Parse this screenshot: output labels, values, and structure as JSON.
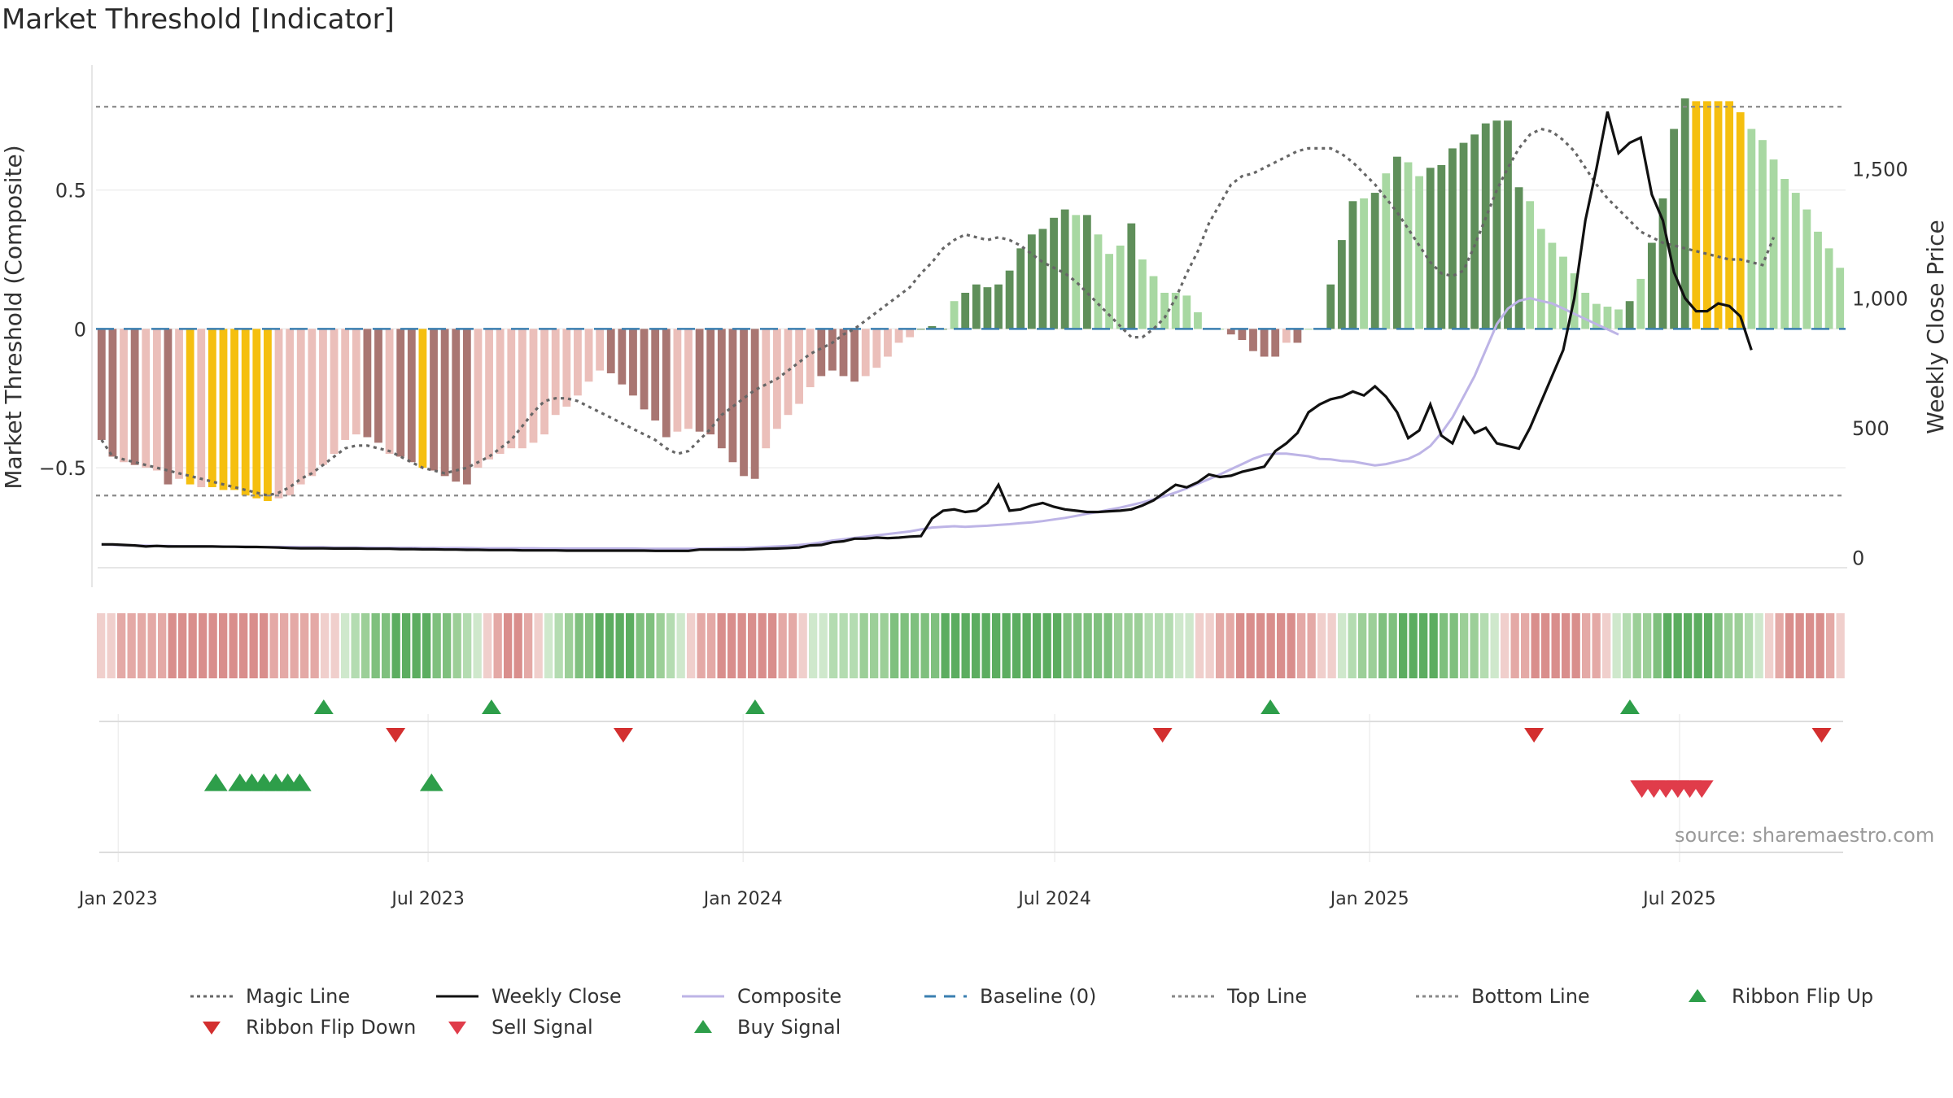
{
  "chart_data": {
    "type": "bar",
    "title": "Market Threshold [Indicator]",
    "ylabel": "Market Threshold (Composite)",
    "ylabel_right": "Weekly Close Price",
    "ylim": [
      -0.86,
      0.95
    ],
    "ylim_right": [
      -40,
      1900
    ],
    "yticks": [
      {
        "v": 0.5,
        "label": "0.5"
      },
      {
        "v": 0,
        "label": "0"
      },
      {
        "v": -0.5,
        "label": "−0.5"
      }
    ],
    "yticks_right": [
      {
        "v": 1500,
        "label": "1,500"
      },
      {
        "v": 1000,
        "label": "1,000"
      },
      {
        "v": 500,
        "label": "500"
      },
      {
        "v": 0,
        "label": "0"
      }
    ],
    "x_start": "2022-12-19",
    "x_end": "2025-10-06",
    "xticks": [
      {
        "date": "2023-01-01",
        "label": "Jan 2023"
      },
      {
        "date": "2023-07-01",
        "label": "Jul 2023"
      },
      {
        "date": "2024-01-01",
        "label": "Jan 2024"
      },
      {
        "date": "2024-07-01",
        "label": "Jul 2024"
      },
      {
        "date": "2025-01-01",
        "label": "Jan 2025"
      },
      {
        "date": "2025-07-01",
        "label": "Jul 2025"
      }
    ],
    "top_line": 0.8,
    "bottom_line": -0.6,
    "baseline": 0,
    "grid": true,
    "legend_position": "bottom",
    "weeks": 144,
    "composite_bars": [
      -0.4,
      -0.46,
      -0.48,
      -0.49,
      -0.5,
      -0.51,
      -0.56,
      -0.54,
      -0.56,
      -0.57,
      -0.57,
      -0.58,
      -0.58,
      -0.6,
      -0.61,
      -0.62,
      -0.61,
      -0.6,
      -0.56,
      -0.53,
      -0.49,
      -0.45,
      -0.4,
      -0.38,
      -0.39,
      -0.41,
      -0.45,
      -0.46,
      -0.48,
      -0.5,
      -0.51,
      -0.53,
      -0.55,
      -0.56,
      -0.5,
      -0.47,
      -0.45,
      -0.43,
      -0.43,
      -0.41,
      -0.38,
      -0.31,
      -0.28,
      -0.24,
      -0.19,
      -0.15,
      -0.16,
      -0.2,
      -0.24,
      -0.29,
      -0.33,
      -0.39,
      -0.37,
      -0.36,
      -0.37,
      -0.38,
      -0.43,
      -0.48,
      -0.53,
      -0.54,
      -0.43,
      -0.36,
      -0.31,
      -0.27,
      -0.21,
      -0.17,
      -0.15,
      -0.17,
      -0.19,
      -0.17,
      -0.14,
      -0.1,
      -0.05,
      -0.03,
      0.0,
      0.01,
      0.0,
      0.1,
      0.13,
      0.16,
      0.15,
      0.16,
      0.21,
      0.29,
      0.34,
      0.36,
      0.4,
      0.43,
      0.41,
      0.41,
      0.34,
      0.27,
      0.3,
      0.38,
      0.25,
      0.19,
      0.13,
      0.13,
      0.12,
      0.06,
      0.0,
      0.0,
      -0.02,
      -0.04,
      -0.08,
      -0.1,
      -0.1,
      -0.05,
      -0.05,
      0.0,
      0.0,
      0.16,
      0.32,
      0.46,
      0.47,
      0.49,
      0.56,
      0.62,
      0.6,
      0.55,
      0.58,
      0.59,
      0.65,
      0.67,
      0.7,
      0.74,
      0.75,
      0.75,
      0.51,
      0.46,
      0.36,
      0.31,
      0.26,
      0.2,
      0.13,
      0.09,
      0.08,
      0.07,
      0.1,
      0.18,
      0.31,
      0.47,
      0.72,
      0.83,
      0.82,
      0.82,
      0.82,
      0.82,
      0.78,
      0.72,
      0.68,
      0.61,
      0.54,
      0.49,
      0.43,
      0.35,
      0.29,
      0.22
    ],
    "bar_tone": [
      "dk",
      "dk",
      "lt",
      "dk",
      "lt",
      "lt",
      "dk",
      "lt",
      "dk",
      "lt",
      "lt",
      "dk",
      "lt",
      "dk",
      "lt",
      "dk",
      "lt",
      "lt",
      "lt",
      "lt",
      "lt",
      "lt",
      "lt",
      "lt",
      "dk",
      "dk",
      "lt",
      "dk",
      "dk",
      "dk",
      "dk",
      "dk",
      "dk",
      "dk",
      "lt",
      "lt",
      "lt",
      "lt",
      "lt",
      "lt",
      "lt",
      "lt",
      "lt",
      "lt",
      "lt",
      "lt",
      "dk",
      "dk",
      "dk",
      "dk",
      "dk",
      "dk",
      "lt",
      "lt",
      "dk",
      "dk",
      "dk",
      "dk",
      "dk",
      "dk",
      "lt",
      "lt",
      "lt",
      "lt",
      "lt",
      "dk",
      "dk",
      "dk",
      "dk",
      "lt",
      "lt",
      "lt",
      "lt",
      "lt",
      "dk",
      "dk",
      "dk",
      "lt",
      "dk",
      "dk",
      "dk",
      "dk",
      "dk",
      "dk",
      "dk",
      "dk",
      "dk",
      "dk",
      "lt",
      "dk",
      "lt",
      "lt",
      "lt",
      "dk",
      "lt",
      "lt",
      "lt",
      "lt",
      "lt",
      "lt",
      "lt",
      "lt",
      "dk",
      "dk",
      "dk",
      "dk",
      "dk",
      "lt",
      "dk",
      "lt",
      "dk",
      "dk",
      "dk",
      "dk",
      "lt",
      "dk",
      "lt",
      "dk",
      "lt",
      "lt",
      "dk",
      "dk",
      "dk",
      "dk",
      "dk",
      "dk",
      "dk",
      "dk",
      "dk",
      "lt",
      "lt",
      "lt",
      "lt",
      "lt",
      "lt",
      "lt",
      "lt",
      "lt",
      "dk",
      "lt",
      "dk",
      "dk",
      "dk",
      "dk",
      "gd",
      "gd",
      "gd",
      "gd",
      "gd",
      "lt",
      "lt",
      "lt",
      "lt",
      "lt",
      "lt",
      "lt",
      "lt",
      "lt",
      "lt"
    ],
    "gold_bars": [
      8,
      10,
      11,
      12,
      13,
      14,
      15,
      29
    ],
    "gold_bars_late": [
      138,
      139,
      140,
      141,
      142
    ],
    "magic_line": [
      -0.4,
      -0.46,
      -0.47,
      -0.48,
      -0.49,
      -0.5,
      -0.51,
      -0.52,
      -0.53,
      -0.54,
      -0.55,
      -0.56,
      -0.57,
      -0.58,
      -0.59,
      -0.6,
      -0.59,
      -0.57,
      -0.54,
      -0.52,
      -0.49,
      -0.46,
      -0.43,
      -0.42,
      -0.42,
      -0.43,
      -0.44,
      -0.46,
      -0.48,
      -0.5,
      -0.51,
      -0.52,
      -0.51,
      -0.5,
      -0.48,
      -0.46,
      -0.43,
      -0.4,
      -0.35,
      -0.3,
      -0.26,
      -0.25,
      -0.25,
      -0.26,
      -0.28,
      -0.3,
      -0.32,
      -0.34,
      -0.36,
      -0.38,
      -0.4,
      -0.43,
      -0.45,
      -0.44,
      -0.4,
      -0.36,
      -0.31,
      -0.28,
      -0.25,
      -0.22,
      -0.2,
      -0.18,
      -0.15,
      -0.12,
      -0.09,
      -0.07,
      -0.05,
      -0.02,
      0.0,
      0.03,
      0.06,
      0.09,
      0.12,
      0.15,
      0.2,
      0.24,
      0.29,
      0.32,
      0.34,
      0.33,
      0.32,
      0.33,
      0.32,
      0.3,
      0.27,
      0.24,
      0.22,
      0.2,
      0.17,
      0.13,
      0.09,
      0.05,
      0.01,
      -0.03,
      -0.03,
      0.0,
      0.04,
      0.11,
      0.2,
      0.28,
      0.38,
      0.45,
      0.52,
      0.55,
      0.56,
      0.58,
      0.6,
      0.62,
      0.64,
      0.65,
      0.65,
      0.65,
      0.63,
      0.6,
      0.56,
      0.52,
      0.47,
      0.42,
      0.36,
      0.3,
      0.24,
      0.2,
      0.19,
      0.21,
      0.3,
      0.4,
      0.5,
      0.58,
      0.65,
      0.7,
      0.72,
      0.71,
      0.68,
      0.64,
      0.58,
      0.52,
      0.47,
      0.43,
      0.39,
      0.35,
      0.33,
      0.31,
      0.3,
      0.29,
      0.28,
      0.27,
      0.26,
      0.25,
      0.25,
      0.24,
      0.23,
      0.33
    ],
    "weekly_close": [
      50,
      50,
      48,
      46,
      42,
      44,
      42,
      42,
      42,
      42,
      42,
      41,
      41,
      40,
      40,
      39,
      38,
      36,
      35,
      35,
      35,
      34,
      34,
      34,
      33,
      33,
      33,
      32,
      32,
      31,
      31,
      30,
      30,
      29,
      29,
      28,
      28,
      28,
      27,
      27,
      27,
      27,
      26,
      26,
      26,
      26,
      26,
      26,
      26,
      26,
      25,
      25,
      25,
      25,
      30,
      30,
      30,
      30,
      30,
      32,
      33,
      34,
      36,
      38,
      46,
      48,
      58,
      62,
      72,
      72,
      76,
      74,
      76,
      80,
      82,
      150,
      180,
      185,
      175,
      180,
      210,
      280,
      180,
      185,
      200,
      210,
      195,
      185,
      180,
      175,
      175,
      178,
      180,
      185,
      200,
      220,
      250,
      280,
      270,
      290,
      320,
      310,
      315,
      330,
      340,
      350,
      410,
      440,
      480,
      560,
      590,
      610,
      620,
      640,
      625,
      660,
      620,
      560,
      460,
      490,
      590,
      470,
      440,
      540,
      480,
      500,
      440,
      430,
      420,
      500,
      600,
      700,
      800,
      1000,
      1300,
      1500,
      1720,
      1560,
      1600,
      1620,
      1400,
      1300,
      1100,
      1000,
      950,
      950,
      980,
      970,
      930,
      800
    ],
    "composite_line_price": [
      50,
      48,
      47,
      46,
      45,
      44,
      44,
      43,
      43,
      43,
      42,
      42,
      41,
      41,
      40,
      40,
      40,
      40,
      39,
      39,
      39,
      38,
      38,
      38,
      38,
      37,
      37,
      37,
      37,
      36,
      36,
      36,
      36,
      36,
      35,
      35,
      35,
      35,
      35,
      35,
      34,
      34,
      34,
      34,
      34,
      34,
      34,
      34,
      34,
      33,
      33,
      33,
      33,
      33,
      33,
      34,
      35,
      36,
      37,
      38,
      40,
      42,
      44,
      48,
      52,
      58,
      65,
      70,
      75,
      80,
      85,
      90,
      95,
      100,
      108,
      115,
      118,
      120,
      118,
      120,
      122,
      125,
      128,
      132,
      135,
      140,
      146,
      152,
      160,
      168,
      175,
      184,
      192,
      202,
      212,
      224,
      236,
      250,
      266,
      284,
      302,
      320,
      340,
      360,
      380,
      395,
      400,
      400,
      395,
      390,
      380,
      378,
      372,
      370,
      362,
      355,
      360,
      370,
      380,
      400,
      430,
      480,
      540,
      620,
      700,
      800,
      900,
      960,
      990,
      1000,
      990,
      980,
      960,
      940,
      920,
      900,
      880,
      860
    ],
    "ribbon": [
      {
        "start": 0,
        "end": 24,
        "tone": "red"
      },
      {
        "start": 24,
        "end": 38,
        "tone": "green"
      },
      {
        "start": 38,
        "end": 44,
        "tone": "red"
      },
      {
        "start": 44,
        "end": 58,
        "tone": "green"
      },
      {
        "start": 58,
        "end": 70,
        "tone": "red"
      },
      {
        "start": 70,
        "end": 108,
        "tone": "green"
      },
      {
        "start": 108,
        "end": 122,
        "tone": "red"
      },
      {
        "start": 122,
        "end": 138,
        "tone": "green"
      },
      {
        "start": 138,
        "end": 149,
        "tone": "red"
      },
      {
        "start": 149,
        "end": 164,
        "tone": "green"
      },
      {
        "start": 164,
        "end": 172,
        "tone": "red"
      }
    ],
    "ribbon_flip_up": [
      "2023-05-01",
      "2023-08-07",
      "2024-01-08",
      "2024-11-04",
      "2025-06-02"
    ],
    "ribbon_flip_down": [
      "2023-06-12",
      "2023-10-23",
      "2024-09-02",
      "2025-04-07",
      "2025-09-22"
    ],
    "buy_signals": [
      "2023-02-27",
      "2023-03-13",
      "2023-03-20",
      "2023-03-27",
      "2023-04-03",
      "2023-04-10",
      "2023-04-17",
      "2023-07-03"
    ],
    "sell_signals": [
      "2025-06-09",
      "2025-06-16",
      "2025-06-23",
      "2025-06-30",
      "2025-07-07",
      "2025-07-14"
    ],
    "source": "source: sharemaestro.com",
    "legend": [
      {
        "label": "Magic Line",
        "symbol": "dotted-line",
        "color": "#666666"
      },
      {
        "label": "Weekly Close",
        "symbol": "solid-line",
        "color": "#111111"
      },
      {
        "label": "Composite",
        "symbol": "solid-line",
        "color": "#bdb4e6"
      },
      {
        "label": "Baseline (0)",
        "symbol": "dashed-line",
        "color": "#3a7fb0"
      },
      {
        "label": "Top Line",
        "symbol": "dotted-line",
        "color": "#888888"
      },
      {
        "label": "Bottom Line",
        "symbol": "dotted-line",
        "color": "#888888"
      },
      {
        "label": "Ribbon Flip Up",
        "symbol": "triangle-up",
        "color": "#2e9e4a"
      },
      {
        "label": "Ribbon Flip Down",
        "symbol": "triangle-down",
        "color": "#d32f2f"
      },
      {
        "label": "Sell Signal",
        "symbol": "triangle-down",
        "color": "#e03c4a"
      },
      {
        "label": "Buy Signal",
        "symbol": "triangle-up",
        "color": "#2e9e4a"
      }
    ]
  },
  "colors": {
    "bar_pos_dark": "#5f8f5a",
    "bar_pos_light": "#a8d8a2",
    "bar_neg_dark": "#a97672",
    "bar_neg_light": "#ebbfba",
    "bar_gold": "#f5bf0f",
    "magic": "#666666",
    "close": "#111111",
    "composite": "#bdb4e6",
    "baseline": "#3a7fb0",
    "guide": "#8a8a8a",
    "up": "#2e9e4a",
    "down": "#d32f2f",
    "sell": "#e03c4a",
    "grid": "#eeeeee"
  }
}
